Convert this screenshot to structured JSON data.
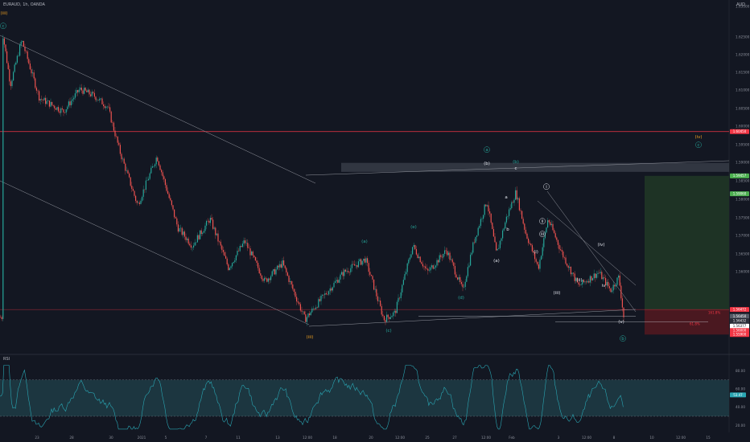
{
  "header": {
    "symbol": "EURAUD, 1h, OANDA",
    "currency": "AUD",
    "rsi_label": "RSI"
  },
  "colors": {
    "background": "#131722",
    "up": "#26a69a",
    "down": "#ef5350",
    "rsi_line": "#2aa6b3",
    "rsi_band": "#1e3a44",
    "resistance": "#f23645",
    "wave_orange": "#f0a020",
    "wave_teal": "#26a69a",
    "target_zone": "#1e3325",
    "stop_zone": "#4a1820"
  },
  "chart_data": {
    "type": "candlestick",
    "price_axis": {
      "min": 1.5552,
      "max": 1.6325,
      "ticks": [
        "1.63000",
        "1.62500",
        "1.62000",
        "1.61500",
        "1.61000",
        "1.60500",
        "1.60000",
        "1.59500",
        "1.59000",
        "1.58500",
        "1.58000",
        "1.57500",
        "1.57000",
        "1.56500",
        "1.56000",
        "1.55630"
      ]
    },
    "time_axis": [
      "23",
      "28",
      "30",
      "2021",
      "5",
      "7",
      "11",
      "13",
      "12:00",
      "18",
      "20",
      "12:00",
      "25",
      "27",
      "12:00",
      "Feb",
      "3",
      "12:00",
      "8",
      "10",
      "12:00",
      "15"
    ],
    "price_tags": [
      {
        "label": "1.60450",
        "price": 1.6045,
        "color": "#f23645"
      },
      {
        "label": "1.59457",
        "price": 1.5946,
        "color": "#4caf50"
      },
      {
        "label": "1.59060",
        "price": 1.5906,
        "color": "#4caf50"
      },
      {
        "label": "1.56472",
        "price": 1.5647,
        "color": "#f23645"
      },
      {
        "label": "1.56450",
        "price": 1.5632,
        "color": "#555a66"
      },
      {
        "label": "1.56432",
        "price": 1.5622,
        "color": "#2a2e39"
      },
      {
        "label": "1.56377",
        "price": 1.561,
        "color": "#ffffff"
      },
      {
        "label": "1.56000",
        "price": 1.56,
        "color": "#f23645"
      },
      {
        "label": "1.55900",
        "price": 1.5591,
        "color": "#f23645"
      }
    ],
    "fib_label": "61.8%",
    "fib_label_2": "161.8%",
    "rsi_axis": {
      "ticks": [
        "80.00",
        "60.00",
        "40.00",
        "20.00"
      ],
      "upper": 70,
      "lower": 30,
      "last": "53.47"
    },
    "wave_labels": [
      {
        "text": "(iii)",
        "color": "#f0a020"
      },
      {
        "text": "c",
        "color": "#26a69a",
        "circled": true
      },
      {
        "text": "(iv)",
        "color": "#f0a020"
      },
      {
        "text": "c",
        "color": "#26a69a",
        "circled": true
      },
      {
        "text": "a",
        "color": "#26a69a",
        "circled": true
      },
      {
        "text": "(iii)",
        "color": "#f0a020"
      },
      {
        "text": "(b)",
        "color": "#26a69a"
      },
      {
        "text": "(a)",
        "color": "#26a69a"
      },
      {
        "text": "(c)",
        "color": "#26a69a"
      },
      {
        "text": "(d)",
        "color": "#26a69a"
      },
      {
        "text": "(e)",
        "color": "#26a69a"
      },
      {
        "text": "(b)",
        "color": "#e0e3eb"
      },
      {
        "text": "c",
        "color": "#e0e3eb"
      },
      {
        "text": "a",
        "color": "#e0e3eb"
      },
      {
        "text": "b",
        "color": "#e0e3eb"
      },
      {
        "text": "(a)",
        "color": "#e0e3eb"
      },
      {
        "text": "i",
        "color": "#e0e3eb",
        "circled": true
      },
      {
        "text": "ii",
        "color": "#e0e3eb",
        "circled": true
      },
      {
        "text": "iii",
        "color": "#e0e3eb",
        "circled": true
      },
      {
        "text": "(i)",
        "color": "#e0e3eb"
      },
      {
        "text": "(ii)",
        "color": "#e0e3eb"
      },
      {
        "text": "(iii)",
        "color": "#e0e3eb"
      },
      {
        "text": "(iv)",
        "color": "#e0e3eb"
      },
      {
        "text": "iv",
        "color": "#e0e3eb"
      },
      {
        "text": "(v)",
        "color": "#e0e3eb"
      },
      {
        "text": "b",
        "color": "#26a69a",
        "circled": true
      }
    ]
  }
}
